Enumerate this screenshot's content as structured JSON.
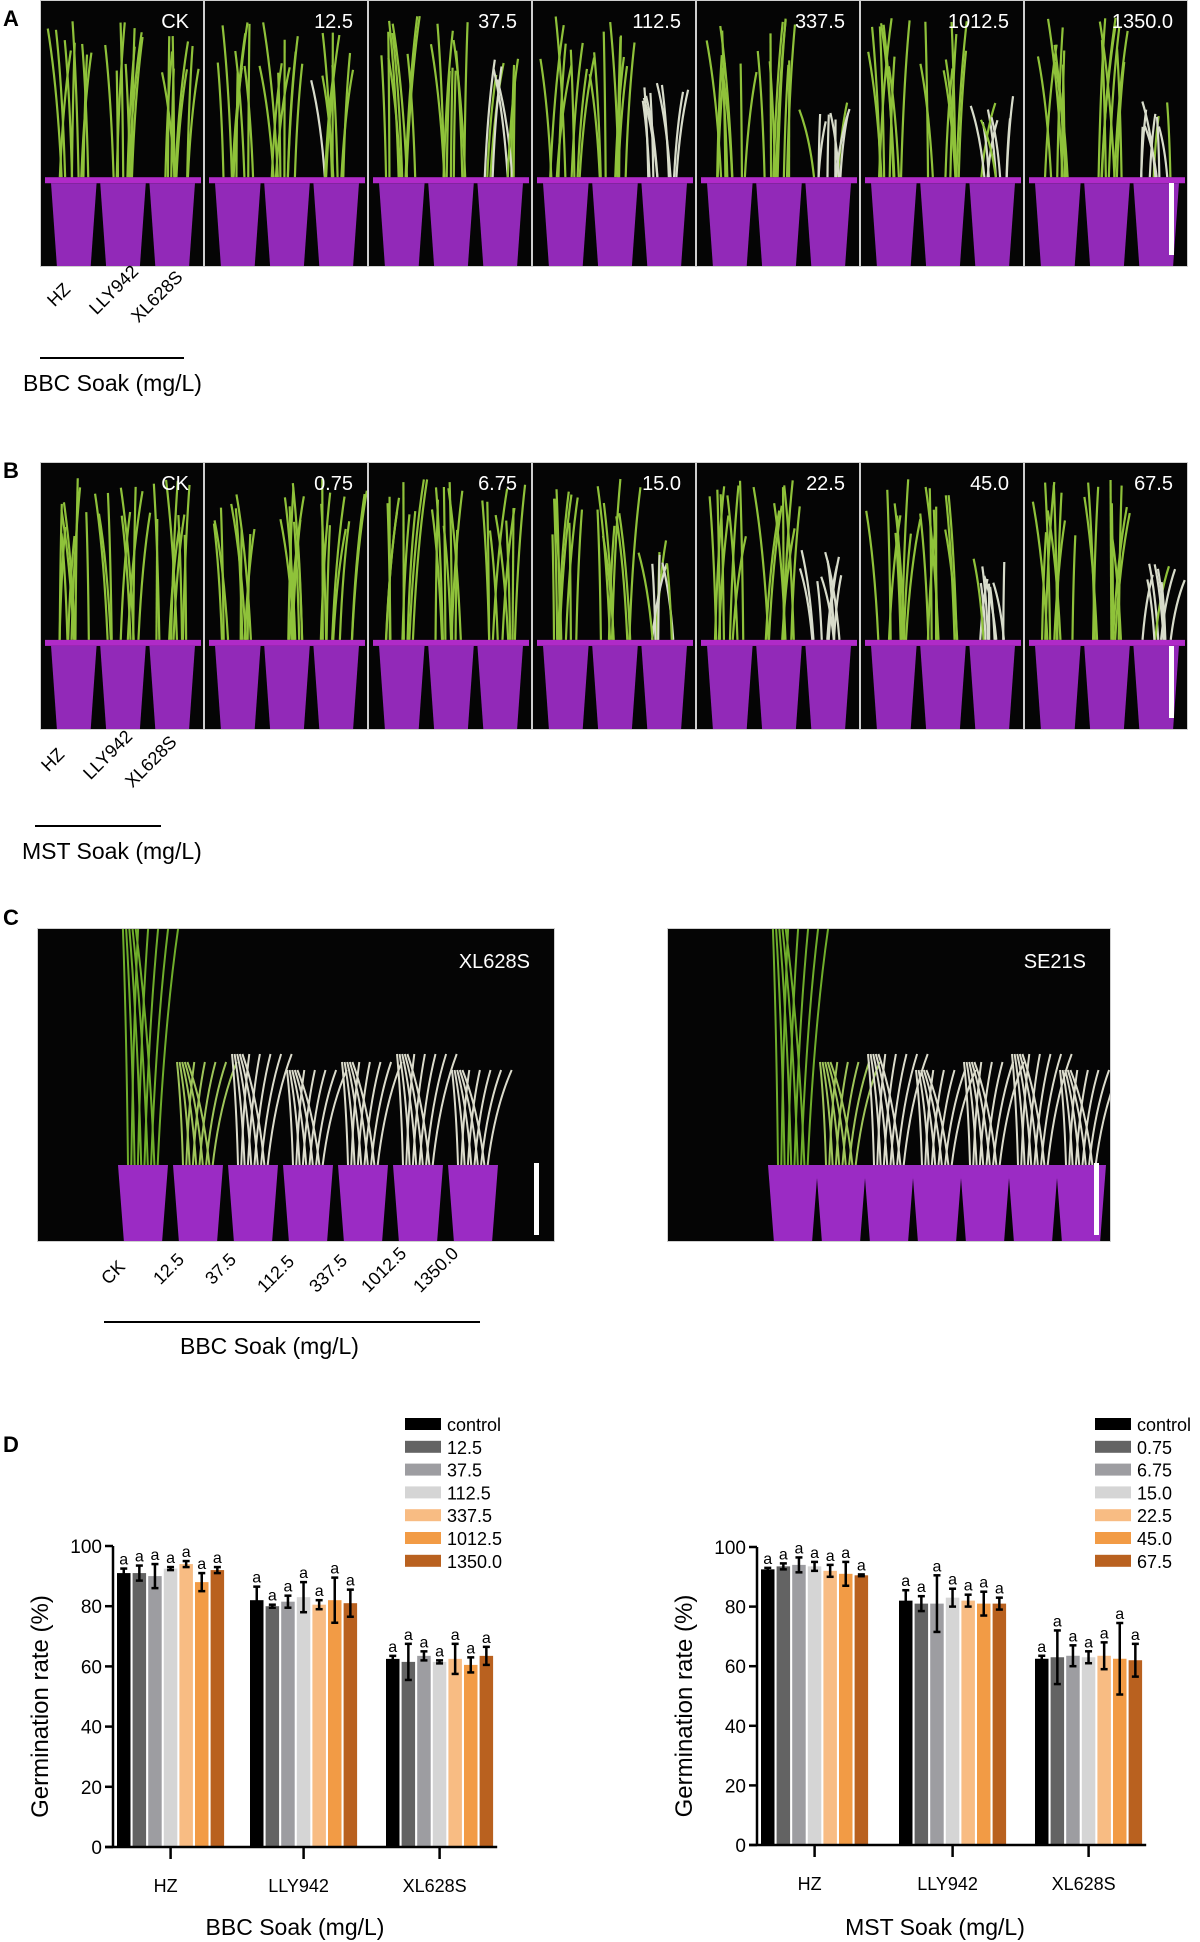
{
  "panelA": {
    "letter": "A",
    "photos": [
      "CK",
      "12.5",
      "37.5",
      "112.5",
      "337.5",
      "1012.5",
      "1350.0"
    ],
    "strains": [
      "HZ",
      "LLY942",
      "XL628S"
    ],
    "caption": "BBC Soak (mg/L)"
  },
  "panelB": {
    "letter": "B",
    "photos": [
      "CK",
      "0.75",
      "6.75",
      "15.0",
      "22.5",
      "45.0",
      "67.5"
    ],
    "strains": [
      "HZ",
      "LLY942",
      "XL628S"
    ],
    "caption": "MST Soak (mg/L)"
  },
  "panelC": {
    "letter": "C",
    "left_label": "XL628S",
    "right_label": "SE21S",
    "pot_labels": [
      "CK",
      "12.5",
      "37.5",
      "112.5",
      "337.5",
      "1012.5",
      "1350.0"
    ],
    "caption": "BBC Soak (mg/L)"
  },
  "panelD": {
    "letter": "D"
  },
  "colors": {
    "series": [
      "#000000",
      "#636363",
      "#9d9da1",
      "#d5d5d5",
      "#f8bc83",
      "#f29b45",
      "#b9611f"
    ],
    "photo_bg": "#050505",
    "pot": "#9b2bc4"
  },
  "chart_data": [
    {
      "type": "bar",
      "title": "",
      "xlabel": "BBC Soak (mg/L)",
      "ylabel": "Germination rate (%)",
      "ylim": [
        0,
        100
      ],
      "yticks": [
        0,
        20,
        40,
        60,
        80,
        100
      ],
      "categories": [
        "HZ",
        "LLY942",
        "XL628S"
      ],
      "legend_position": "top-right",
      "grid": false,
      "series": [
        {
          "name": "control",
          "values": [
            91,
            82,
            62.5
          ],
          "errors": [
            1.5,
            4.5,
            1
          ],
          "letters": [
            "a",
            "a",
            "a"
          ]
        },
        {
          "name": "12.5",
          "values": [
            91,
            80,
            61.5
          ],
          "errors": [
            2.5,
            0.5,
            6
          ],
          "letters": [
            "a",
            "a",
            "a"
          ]
        },
        {
          "name": "37.5",
          "values": [
            90,
            81.5,
            63.5
          ],
          "errors": [
            4,
            2,
            1.5
          ],
          "letters": [
            "a",
            "a",
            "a"
          ]
        },
        {
          "name": "112.5",
          "values": [
            92.5,
            83,
            61.5
          ],
          "errors": [
            0.5,
            5,
            0.5
          ],
          "letters": [
            "a",
            "a",
            "a"
          ]
        },
        {
          "name": "337.5",
          "values": [
            94,
            80.5,
            62.5
          ],
          "errors": [
            1,
            1.5,
            5
          ],
          "letters": [
            "a",
            "a",
            "a"
          ]
        },
        {
          "name": "1012.5",
          "values": [
            88,
            82,
            60.5
          ],
          "errors": [
            3,
            7.5,
            2.5
          ],
          "letters": [
            "a",
            "a",
            "a"
          ]
        },
        {
          "name": "1350.0",
          "values": [
            92,
            81,
            63.5
          ],
          "errors": [
            1,
            4.5,
            3
          ],
          "letters": [
            "a",
            "a",
            "a"
          ]
        }
      ]
    },
    {
      "type": "bar",
      "title": "",
      "xlabel": "MST Soak (mg/L)",
      "ylabel": "Germination rate (%)",
      "ylim": [
        0,
        100
      ],
      "yticks": [
        0,
        20,
        40,
        60,
        80,
        100
      ],
      "categories": [
        "HZ",
        "LLY942",
        "XL628S"
      ],
      "legend_position": "top-right",
      "grid": false,
      "series": [
        {
          "name": "control",
          "values": [
            92.5,
            82,
            62.5
          ],
          "errors": [
            0.5,
            3.5,
            1
          ],
          "letters": [
            "a",
            "a",
            "a"
          ]
        },
        {
          "name": "0.75",
          "values": [
            93.5,
            81,
            63
          ],
          "errors": [
            1,
            2.5,
            9
          ],
          "letters": [
            "a",
            "a",
            "a"
          ]
        },
        {
          "name": "6.75",
          "values": [
            94,
            81,
            63.5
          ],
          "errors": [
            2.5,
            9.5,
            3.5
          ],
          "letters": [
            "a",
            "a",
            "a"
          ]
        },
        {
          "name": "15.0",
          "values": [
            93.5,
            83,
            63
          ],
          "errors": [
            1.5,
            3,
            2
          ],
          "letters": [
            "a",
            "a",
            "a"
          ]
        },
        {
          "name": "22.5",
          "values": [
            92,
            82,
            63.5
          ],
          "errors": [
            2,
            2,
            4.5
          ],
          "letters": [
            "a",
            "a",
            "a"
          ]
        },
        {
          "name": "45.0",
          "values": [
            91,
            81,
            62.5
          ],
          "errors": [
            4,
            4,
            12
          ],
          "letters": [
            "a",
            "a",
            "a"
          ]
        },
        {
          "name": "67.5",
          "values": [
            90.5,
            81,
            62
          ],
          "errors": [
            0.3,
            2,
            5.5
          ],
          "letters": [
            "a",
            "a",
            "a"
          ]
        }
      ]
    }
  ]
}
